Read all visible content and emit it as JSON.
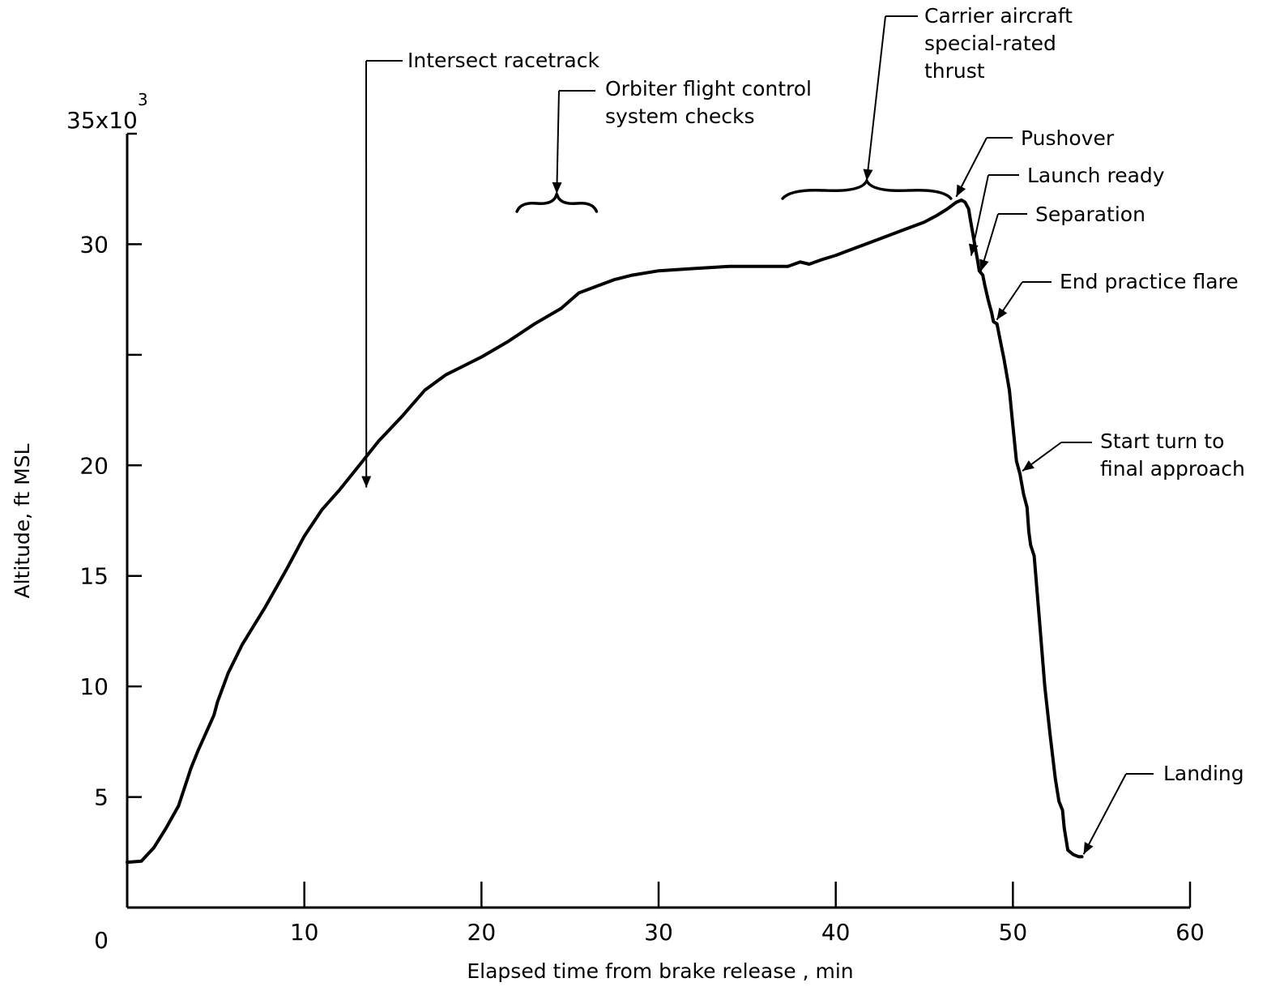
{
  "chart_data": {
    "type": "line",
    "xlabel": "Elapsed time from brake release , min",
    "ylabel": "Altitude, ft MSL",
    "xlim": [
      0,
      60
    ],
    "ylim": [
      0,
      35000
    ],
    "x_ticks": [
      0,
      10,
      20,
      30,
      40,
      50,
      60
    ],
    "x_tick_labels": [
      "0",
      "10",
      "20",
      "30",
      "40",
      "50",
      "60"
    ],
    "y_ticks": [
      5000,
      10000,
      15000,
      20000,
      25000,
      30000
    ],
    "y_tick_labels": [
      "5",
      "10",
      "15",
      "20",
      "",
      "30"
    ],
    "y_top_label": {
      "value": 35000,
      "base": "35x10",
      "exponent": "3"
    },
    "grid": false,
    "series": [
      {
        "x": [
          0,
          0.8,
          1.5,
          2.2,
          2.9,
          3.6,
          4.0,
          4.9,
          5.1,
          5.7,
          6.5,
          7.8,
          9.0,
          10.0,
          11.0,
          12.0,
          13.0,
          14.2,
          15.5,
          16.8,
          18.0,
          19.0,
          20.0,
          21.5,
          23.0,
          24.5,
          25.5,
          26.5,
          27.5,
          28.5,
          30.0,
          32.0,
          34.0,
          36.0,
          36.7,
          37.3,
          38.0,
          38.5,
          39.2,
          40.0,
          41.0,
          42.0,
          43.0,
          44.0,
          45.0,
          45.7,
          46.3,
          46.8,
          47.1,
          47.3,
          47.5,
          47.6,
          47.8,
          48.0,
          48.1,
          48.3,
          48.4,
          48.6,
          48.8,
          48.9,
          49.1,
          49.3,
          49.5,
          49.8,
          50.0,
          50.2,
          50.4,
          50.6,
          50.8,
          50.9,
          51.0,
          51.2,
          51.5,
          51.8,
          52.1,
          52.4,
          52.6,
          52.8,
          52.9,
          53.1,
          53.4,
          53.7,
          53.9
        ],
        "values": [
          2050,
          2100,
          2700,
          3600,
          4600,
          6300,
          7100,
          8700,
          9300,
          10600,
          11900,
          13600,
          15300,
          16800,
          18000,
          18900,
          19900,
          21100,
          22200,
          23400,
          24100,
          24500,
          24900,
          25600,
          26400,
          27100,
          27800,
          28100,
          28400,
          28600,
          28800,
          28900,
          29000,
          29000,
          29000,
          29000,
          29200,
          29100,
          29300,
          29500,
          29800,
          30100,
          30400,
          30700,
          31000,
          31300,
          31600,
          31900,
          32000,
          31900,
          31600,
          31100,
          30200,
          29300,
          28800,
          28600,
          28200,
          27500,
          26900,
          26500,
          26400,
          25600,
          24800,
          23400,
          21800,
          20200,
          19600,
          18700,
          18100,
          17000,
          16400,
          15900,
          13000,
          10000,
          7800,
          5800,
          4800,
          4400,
          3600,
          2600,
          2400,
          2300,
          2300
        ]
      }
    ],
    "annotations": [
      {
        "lines": [
          "Intersect racetrack"
        ],
        "x": 13.5,
        "y": 19000
      },
      {
        "lines": [
          "Orbiter flight control",
          "system checks"
        ],
        "x_range": [
          22,
          26.5
        ],
        "y": 32800
      },
      {
        "lines": [
          "Carrier aircraft",
          "special-rated",
          "thrust"
        ],
        "x_range": [
          37,
          46.5
        ],
        "y": 32800
      },
      {
        "lines": [
          "Pushover"
        ],
        "x": 46.8,
        "y": 32000
      },
      {
        "lines": [
          "Launch ready"
        ],
        "x": 47.6,
        "y": 29300
      },
      {
        "lines": [
          "Separation"
        ],
        "x": 48.1,
        "y": 28600
      },
      {
        "lines": [
          "End practice flare"
        ],
        "x": 49.0,
        "y": 26400
      },
      {
        "lines": [
          "Start turn to",
          "final approach"
        ],
        "x": 50.4,
        "y": 19600
      },
      {
        "lines": [
          "Landing"
        ],
        "x": 53.9,
        "y": 2300
      }
    ]
  }
}
